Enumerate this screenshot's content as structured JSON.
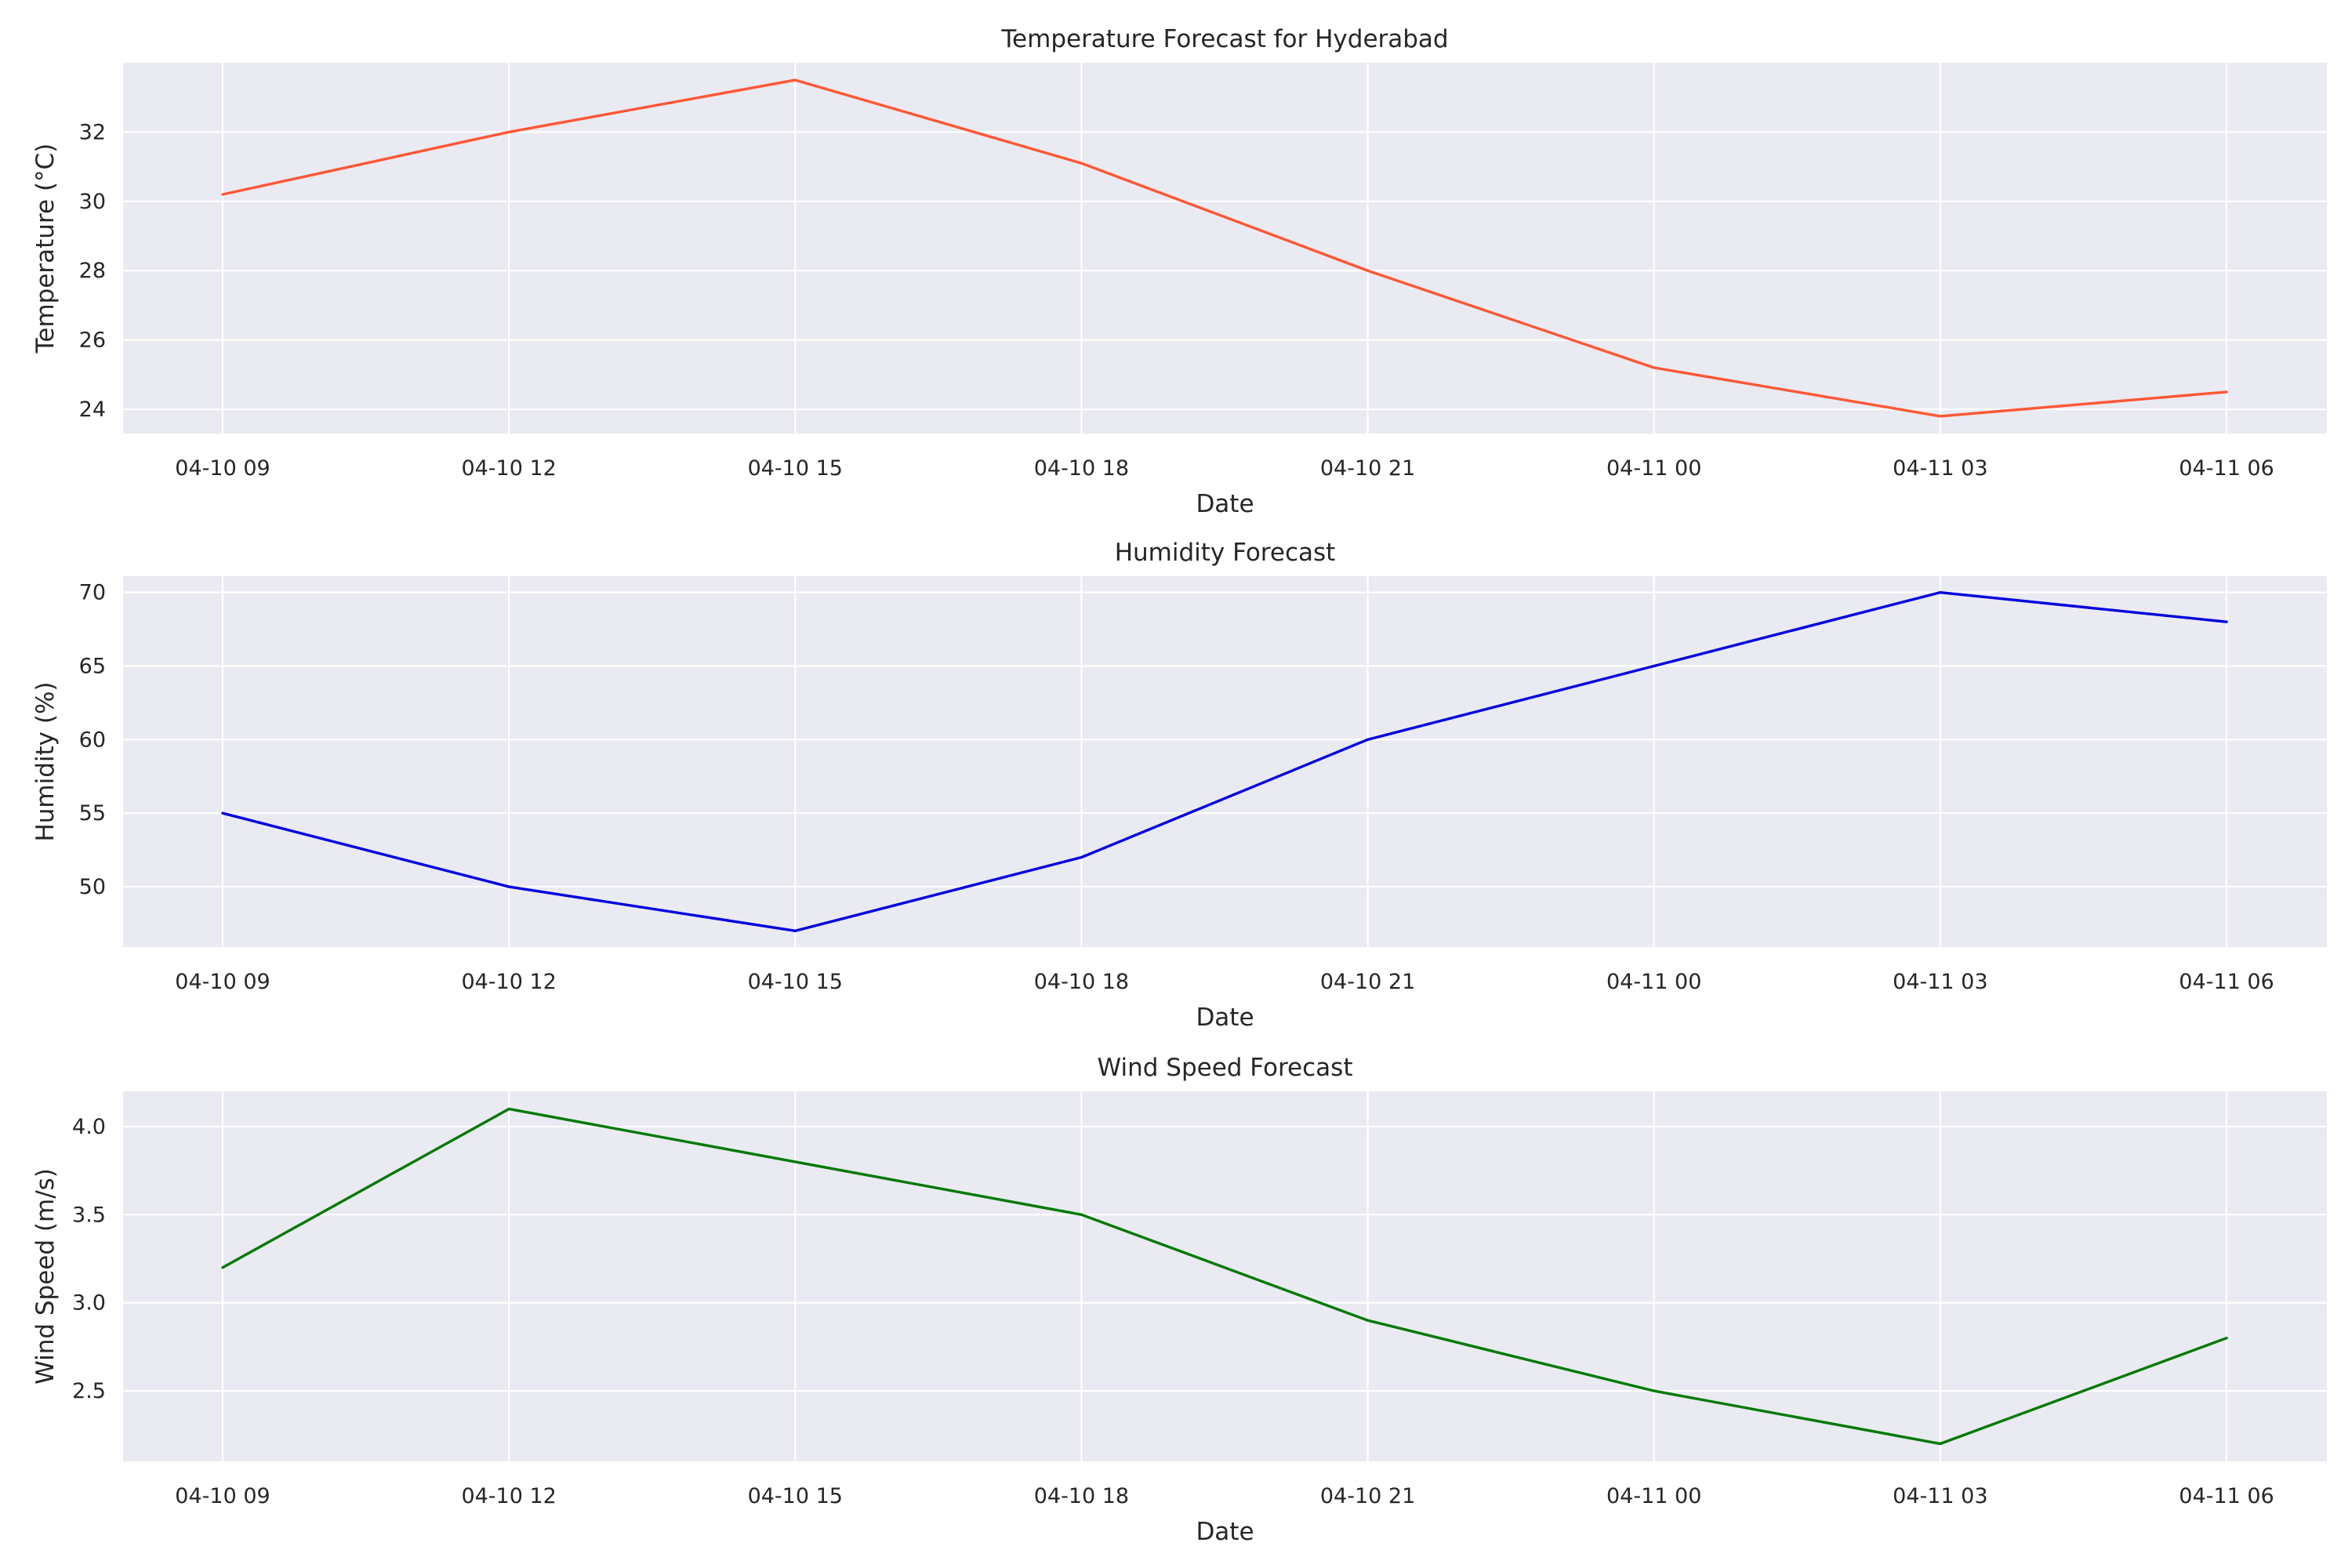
{
  "chart_data": [
    {
      "type": "line",
      "title": "Temperature Forecast for Hyderabad",
      "xlabel": "Date",
      "ylabel": "Temperature (°C)",
      "categories": [
        "04-10 09",
        "04-10 12",
        "04-10 15",
        "04-10 18",
        "04-10 21",
        "04-11 00",
        "04-11 03",
        "04-11 06"
      ],
      "series": [
        {
          "values": [
            30.2,
            32.0,
            33.5,
            31.1,
            28.0,
            25.2,
            23.8,
            24.5
          ],
          "color": "#ff5733"
        }
      ],
      "ylim": [
        23.3,
        34.0
      ],
      "yticks": [
        24,
        26,
        28,
        30,
        32
      ],
      "ytick_labels": [
        "24",
        "26",
        "28",
        "30",
        "32"
      ],
      "grid": true
    },
    {
      "type": "line",
      "title": "Humidity Forecast",
      "xlabel": "Date",
      "ylabel": "Humidity (%)",
      "categories": [
        "04-10 09",
        "04-10 12",
        "04-10 15",
        "04-10 18",
        "04-10 21",
        "04-11 00",
        "04-11 03",
        "04-11 06"
      ],
      "series": [
        {
          "values": [
            55,
            50,
            47,
            52,
            60,
            65,
            70,
            68
          ],
          "color": "#0000e0"
        }
      ],
      "ylim": [
        45.9,
        71.1
      ],
      "yticks": [
        50,
        55,
        60,
        65,
        70
      ],
      "ytick_labels": [
        "50",
        "55",
        "60",
        "65",
        "70"
      ],
      "grid": true
    },
    {
      "type": "line",
      "title": "Wind Speed Forecast",
      "xlabel": "Date",
      "ylabel": "Wind Speed (m/s)",
      "categories": [
        "04-10 09",
        "04-10 12",
        "04-10 15",
        "04-10 18",
        "04-10 21",
        "04-11 00",
        "04-11 03",
        "04-11 06"
      ],
      "series": [
        {
          "values": [
            3.2,
            4.1,
            3.8,
            3.5,
            2.9,
            2.5,
            2.2,
            2.8
          ],
          "color": "#007a00"
        }
      ],
      "ylim": [
        2.1,
        4.2
      ],
      "yticks": [
        2.5,
        3.0,
        3.5,
        4.0
      ],
      "ytick_labels": [
        "2.5",
        "3.0",
        "3.5",
        "4.0"
      ],
      "grid": true
    }
  ]
}
